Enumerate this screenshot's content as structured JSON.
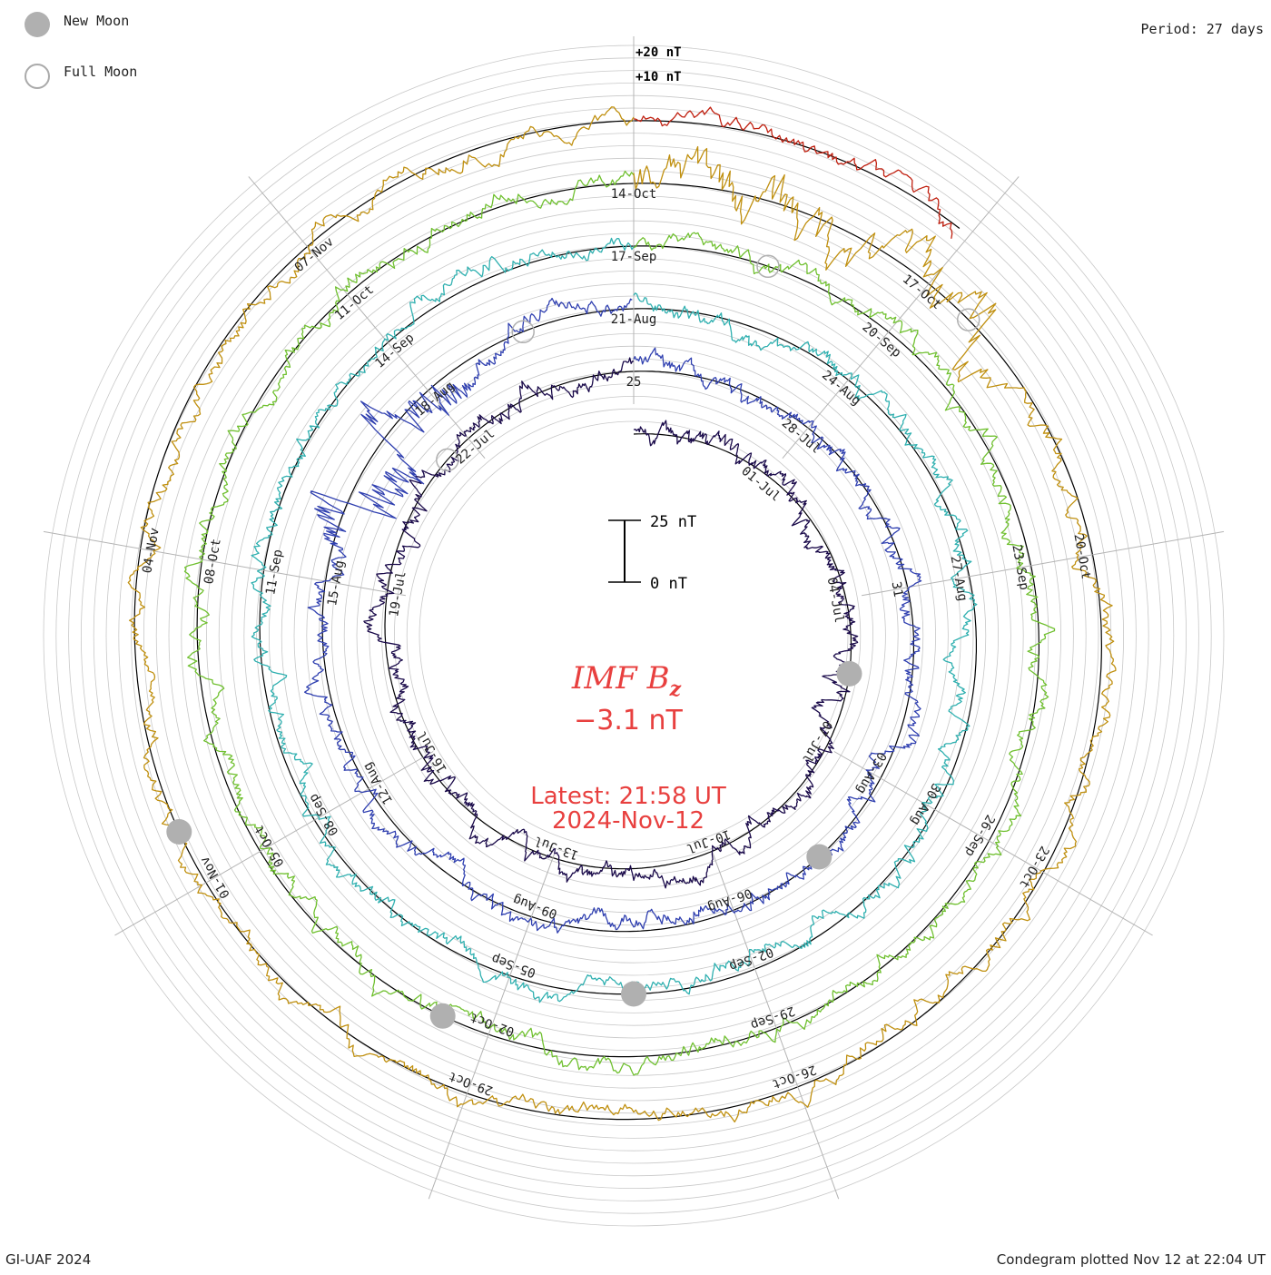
{
  "header": {
    "legend_new_moon": "New Moon",
    "legend_full_moon": "Full Moon",
    "period": "Period: 27 days"
  },
  "footer": {
    "credit": "GI-UAF 2024",
    "plotted": "Condegram plotted Nov 12 at 22:04 UT"
  },
  "center": {
    "quantity": "IMF B",
    "subscript": "z",
    "value": "−3.1 nT",
    "latest": "Latest: 21:58 UT",
    "date": "2024-Nov-12"
  },
  "scale_bar": {
    "top_label": "25 nT",
    "bottom_label": "0 nT"
  },
  "colors": {
    "text_red": "#e8403f",
    "grid": "#c8c8c8",
    "spoke": "#b4b4b4",
    "baseline": "#000000",
    "moon": "#b0b0b0"
  },
  "chart_data": {
    "type": "condegram-spiral",
    "title": "IMF Bz",
    "period_days": 27,
    "value_ticks": [
      "+20 nT",
      "+10 nT"
    ],
    "latest_value_nT": -3.1,
    "scale_bar_nT": [
      0,
      25
    ],
    "turns": [
      {
        "color": "#1a0a4a",
        "start": "2024-06-28",
        "date_labels": [
          "01-Jul",
          "04-Jul",
          "07-Jul",
          "10-Jul",
          "13-Jul",
          "16-Jul",
          "19-Jul",
          "22-Jul",
          "25"
        ]
      },
      {
        "color": "#3040b0",
        "start": "2024-07-25",
        "date_labels": [
          "28-Jul",
          "31",
          "03-Aug",
          "06-Aug",
          "09-Aug",
          "12-Aug",
          "15-Aug",
          "18-Aug",
          "21-Aug"
        ]
      },
      {
        "color": "#30b0b0",
        "start": "2024-08-21",
        "date_labels": [
          "24-Aug",
          "27-Aug",
          "30-Aug",
          "02-Sep",
          "05-Sep",
          "08-Sep",
          "11-Sep",
          "14-Sep",
          "17-Sep"
        ]
      },
      {
        "color": "#70c030",
        "start": "2024-09-17",
        "date_labels": [
          "20-Sep",
          "23-Sep",
          "26-Sep",
          "29-Sep",
          "02-Oct",
          "05-Oct",
          "08-Oct",
          "11-Oct",
          "14-Oct"
        ]
      },
      {
        "color": "#c09010",
        "start": "2024-10-14",
        "date_labels": [
          "17-Oct",
          "20-Oct",
          "23-Oct",
          "26-Oct",
          "29-Oct",
          "01-Nov",
          "04-Nov",
          "07-Nov"
        ]
      },
      {
        "color": "#c02010",
        "start": "2024-11-10",
        "date_labels": []
      }
    ],
    "new_moons": [
      "2024-07-05",
      "2024-08-04",
      "2024-09-03",
      "2024-10-02",
      "2024-11-01"
    ],
    "full_moons": [
      "2024-07-21",
      "2024-08-19",
      "2024-09-18",
      "2024-10-17"
    ]
  }
}
